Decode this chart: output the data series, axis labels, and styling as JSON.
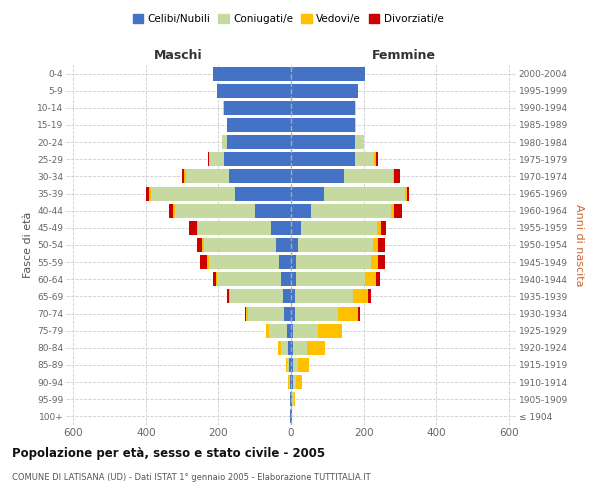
{
  "age_groups": [
    "100+",
    "95-99",
    "90-94",
    "85-89",
    "80-84",
    "75-79",
    "70-74",
    "65-69",
    "60-64",
    "55-59",
    "50-54",
    "45-49",
    "40-44",
    "35-39",
    "30-34",
    "25-29",
    "20-24",
    "15-19",
    "10-14",
    "5-9",
    "0-4"
  ],
  "birth_years": [
    "≤ 1904",
    "1905-1909",
    "1910-1914",
    "1915-1919",
    "1920-1924",
    "1925-1929",
    "1930-1934",
    "1935-1939",
    "1940-1944",
    "1945-1949",
    "1950-1954",
    "1955-1959",
    "1960-1964",
    "1965-1969",
    "1970-1974",
    "1975-1979",
    "1980-1984",
    "1985-1989",
    "1990-1994",
    "1995-1999",
    "2000-2004"
  ],
  "colors": {
    "celibi": "#4472c4",
    "coniugati": "#c5d9a0",
    "vedovi": "#ffc000",
    "divorziati": "#cc0000"
  },
  "maschi": {
    "celibi": [
      2,
      2,
      3,
      5,
      7,
      10,
      18,
      22,
      28,
      32,
      40,
      55,
      100,
      155,
      170,
      185,
      175,
      175,
      185,
      205,
      215
    ],
    "coniugati": [
      0,
      0,
      2,
      5,
      20,
      50,
      100,
      145,
      175,
      195,
      200,
      200,
      220,
      230,
      120,
      40,
      15,
      2,
      2,
      0,
      0
    ],
    "vedovi": [
      0,
      0,
      2,
      5,
      10,
      10,
      5,
      5,
      5,
      5,
      5,
      5,
      5,
      5,
      5,
      0,
      0,
      0,
      0,
      0,
      0
    ],
    "divorziati": [
      0,
      0,
      0,
      0,
      0,
      0,
      5,
      5,
      8,
      20,
      15,
      20,
      10,
      10,
      5,
      5,
      0,
      0,
      0,
      0,
      0
    ]
  },
  "femmine": {
    "celibi": [
      2,
      2,
      5,
      5,
      5,
      5,
      10,
      12,
      15,
      15,
      20,
      28,
      55,
      90,
      145,
      175,
      175,
      175,
      175,
      185,
      205
    ],
    "coniugati": [
      0,
      5,
      10,
      15,
      40,
      70,
      120,
      160,
      190,
      205,
      205,
      210,
      220,
      225,
      135,
      55,
      25,
      5,
      5,
      0,
      0
    ],
    "vedovi": [
      0,
      5,
      15,
      30,
      50,
      65,
      55,
      40,
      30,
      20,
      15,
      10,
      10,
      5,
      5,
      5,
      0,
      0,
      0,
      0,
      0
    ],
    "divorziati": [
      0,
      0,
      0,
      0,
      0,
      0,
      5,
      8,
      10,
      20,
      20,
      15,
      20,
      5,
      15,
      5,
      0,
      0,
      0,
      0,
      0
    ]
  },
  "title": "Popolazione per età, sesso e stato civile - 2005",
  "subtitle": "COMUNE DI LATISANA (UD) - Dati ISTAT 1° gennaio 2005 - Elaborazione TUTTITALIA.IT",
  "xlabel_left": "Maschi",
  "xlabel_right": "Femmine",
  "ylabel_left": "Fasce di età",
  "ylabel_right": "Anni di nascita",
  "legend_labels": [
    "Celibi/Nubili",
    "Coniugati/e",
    "Vedovi/e",
    "Divorziati/e"
  ],
  "xlim": 620,
  "background_color": "#ffffff",
  "grid_color": "#cccccc",
  "bar_height": 0.82
}
